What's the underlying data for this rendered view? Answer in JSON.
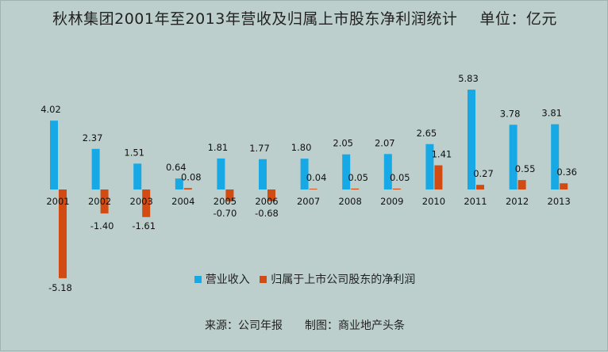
{
  "title": "秋林集团2001年至2013年营收及归属上市股东净利润统计",
  "unit": "单位：亿元",
  "source": "来源：公司年报",
  "credit": "制图：商业地产头条",
  "colors": {
    "revenue": "#17a8e6",
    "profit": "#d14b12",
    "background": "#bccfcc"
  },
  "chart_data": {
    "type": "bar",
    "categories": [
      "2001",
      "2002",
      "2003",
      "2004",
      "2005",
      "2006",
      "2007",
      "2008",
      "2009",
      "2010",
      "2011",
      "2012",
      "2013"
    ],
    "series": [
      {
        "name": "营业收入",
        "values": [
          4.02,
          2.37,
          1.51,
          0.64,
          1.81,
          1.77,
          1.8,
          2.05,
          2.07,
          2.65,
          5.83,
          3.78,
          3.81
        ]
      },
      {
        "name": "归属于上市公司股东的净利润",
        "values": [
          -5.18,
          -1.4,
          -1.61,
          0.08,
          -0.7,
          -0.68,
          0.04,
          0.05,
          0.05,
          1.41,
          0.27,
          0.55,
          0.36
        ]
      }
    ],
    "labels": [
      [
        "4.02",
        "2.37",
        "1.51",
        "0.64",
        "1.81",
        "1.77",
        "1.80",
        "2.05",
        "2.07",
        "2.65",
        "5.83",
        "3.78",
        "3.81"
      ],
      [
        "-5.18",
        "-1.40",
        "-1.61",
        "0.08",
        "-0.70",
        "-0.68",
        "0.04",
        "0.05",
        "0.05",
        "1.41",
        "0.27",
        "0.55",
        "0.36"
      ]
    ],
    "legend_position": "bottom",
    "grid": false
  }
}
